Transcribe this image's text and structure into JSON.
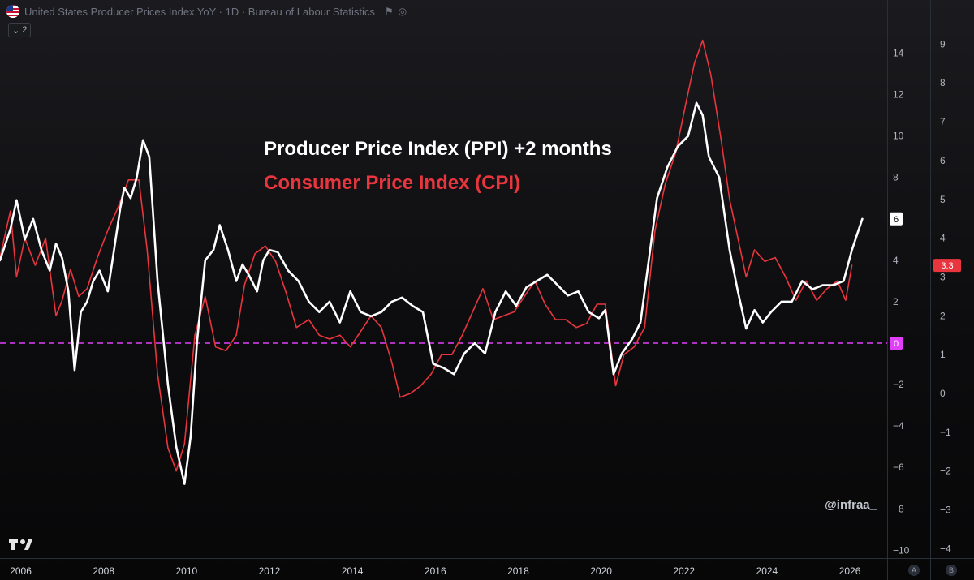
{
  "header": {
    "title": "United States Producer Prices Index YoY · 1D · Bureau of Labour Statistics",
    "flag_icon": "us-flag-icon",
    "collapse_label": "2"
  },
  "colors": {
    "ppi": "#ffffff",
    "cpi": "#e8353e",
    "zero_line": "#e040fb",
    "background": "#0d0d0f"
  },
  "watermark": "@infraa_",
  "scale_buttons": [
    "A",
    "B"
  ],
  "chart_data": {
    "type": "line",
    "title": "",
    "annotations": [
      "Producer Price Index (PPI) +2 months",
      "Consumer Price Index (CPI)"
    ],
    "x_axis": {
      "ticks": [
        "2006",
        "2008",
        "2010",
        "2012",
        "2014",
        "2016",
        "2018",
        "2020",
        "2022",
        "2024",
        "2026"
      ],
      "range": [
        2005.5,
        2026.9
      ]
    },
    "y_axis_ppi": {
      "ticks": [
        14,
        12,
        10,
        8,
        6,
        4,
        2,
        0,
        -2,
        -4,
        -6,
        -8,
        -10
      ],
      "range": [
        -10.3,
        15.0
      ],
      "last_value_label": "6",
      "zero_label": "0"
    },
    "y_axis_cpi": {
      "ticks": [
        9,
        8,
        7,
        6,
        5,
        4,
        3,
        2,
        1,
        0,
        -1,
        -2,
        -3,
        -4
      ],
      "range": [
        -4.2,
        9.3
      ],
      "last_value_label": "3.3"
    },
    "zero_line": 0,
    "legend": "none",
    "grid": false,
    "series": [
      {
        "name": "Producer Price Index (PPI) +2 months",
        "axis": "left",
        "values": [
          [
            2005.5,
            4.0
          ],
          [
            2005.75,
            5.5
          ],
          [
            2005.9,
            6.9
          ],
          [
            2006.1,
            5.0
          ],
          [
            2006.3,
            6.0
          ],
          [
            2006.5,
            4.5
          ],
          [
            2006.7,
            3.5
          ],
          [
            2006.85,
            4.8
          ],
          [
            2007.0,
            4.1
          ],
          [
            2007.15,
            2.5
          ],
          [
            2007.3,
            -1.3
          ],
          [
            2007.45,
            1.5
          ],
          [
            2007.6,
            2.0
          ],
          [
            2007.75,
            3.0
          ],
          [
            2007.9,
            3.5
          ],
          [
            2008.1,
            2.5
          ],
          [
            2008.25,
            4.5
          ],
          [
            2008.4,
            6.5
          ],
          [
            2008.5,
            7.5
          ],
          [
            2008.65,
            7.0
          ],
          [
            2008.8,
            8.0
          ],
          [
            2008.95,
            9.8
          ],
          [
            2009.1,
            9.0
          ],
          [
            2009.3,
            3.0
          ],
          [
            2009.55,
            -2.0
          ],
          [
            2009.75,
            -5.0
          ],
          [
            2009.95,
            -6.8
          ],
          [
            2010.1,
            -4.5
          ],
          [
            2010.25,
            0.0
          ],
          [
            2010.45,
            4.0
          ],
          [
            2010.65,
            4.5
          ],
          [
            2010.8,
            5.7
          ],
          [
            2011.0,
            4.5
          ],
          [
            2011.2,
            3.0
          ],
          [
            2011.35,
            3.8
          ],
          [
            2011.5,
            3.3
          ],
          [
            2011.7,
            2.5
          ],
          [
            2011.85,
            4.0
          ],
          [
            2012.0,
            4.5
          ],
          [
            2012.2,
            4.4
          ],
          [
            2012.45,
            3.5
          ],
          [
            2012.7,
            3.0
          ],
          [
            2012.95,
            2.0
          ],
          [
            2013.2,
            1.5
          ],
          [
            2013.45,
            2.0
          ],
          [
            2013.7,
            1.0
          ],
          [
            2013.95,
            2.5
          ],
          [
            2014.2,
            1.5
          ],
          [
            2014.45,
            1.3
          ],
          [
            2014.7,
            1.5
          ],
          [
            2014.95,
            2.0
          ],
          [
            2015.2,
            2.2
          ],
          [
            2015.45,
            1.8
          ],
          [
            2015.7,
            1.5
          ],
          [
            2015.95,
            -1.0
          ],
          [
            2016.2,
            -1.2
          ],
          [
            2016.45,
            -1.5
          ],
          [
            2016.7,
            -0.5
          ],
          [
            2016.95,
            0.0
          ],
          [
            2017.2,
            -0.5
          ],
          [
            2017.45,
            1.5
          ],
          [
            2017.7,
            2.5
          ],
          [
            2017.95,
            1.8
          ],
          [
            2018.2,
            2.7
          ],
          [
            2018.45,
            3.0
          ],
          [
            2018.7,
            3.3
          ],
          [
            2018.95,
            2.8
          ],
          [
            2019.2,
            2.3
          ],
          [
            2019.45,
            2.5
          ],
          [
            2019.7,
            1.5
          ],
          [
            2019.95,
            1.2
          ],
          [
            2020.1,
            1.6
          ],
          [
            2020.3,
            -1.5
          ],
          [
            2020.5,
            -0.5
          ],
          [
            2020.75,
            0.2
          ],
          [
            2020.95,
            1.0
          ],
          [
            2021.15,
            4.0
          ],
          [
            2021.35,
            7.0
          ],
          [
            2021.6,
            8.5
          ],
          [
            2021.85,
            9.5
          ],
          [
            2022.1,
            10.0
          ],
          [
            2022.3,
            11.6
          ],
          [
            2022.45,
            11.0
          ],
          [
            2022.6,
            9.0
          ],
          [
            2022.85,
            8.0
          ],
          [
            2023.1,
            4.5
          ],
          [
            2023.3,
            2.5
          ],
          [
            2023.5,
            0.7
          ],
          [
            2023.7,
            1.6
          ],
          [
            2023.9,
            1.0
          ],
          [
            2024.1,
            1.5
          ],
          [
            2024.35,
            2.0
          ],
          [
            2024.6,
            2.0
          ],
          [
            2024.85,
            3.0
          ],
          [
            2025.1,
            2.6
          ],
          [
            2025.35,
            2.8
          ],
          [
            2025.6,
            2.8
          ],
          [
            2025.85,
            3.0
          ],
          [
            2026.05,
            4.5
          ],
          [
            2026.3,
            6.0
          ]
        ]
      },
      {
        "name": "Consumer Price Index (CPI)",
        "axis": "right",
        "values": [
          [
            2005.5,
            3.5
          ],
          [
            2005.75,
            4.7
          ],
          [
            2005.9,
            3.0
          ],
          [
            2006.1,
            4.0
          ],
          [
            2006.35,
            3.3
          ],
          [
            2006.6,
            4.0
          ],
          [
            2006.85,
            2.0
          ],
          [
            2007.0,
            2.4
          ],
          [
            2007.2,
            3.2
          ],
          [
            2007.4,
            2.5
          ],
          [
            2007.6,
            2.7
          ],
          [
            2007.85,
            3.5
          ],
          [
            2008.1,
            4.2
          ],
          [
            2008.35,
            4.8
          ],
          [
            2008.6,
            5.5
          ],
          [
            2008.85,
            5.5
          ],
          [
            2009.05,
            3.7
          ],
          [
            2009.3,
            0.5
          ],
          [
            2009.55,
            -1.4
          ],
          [
            2009.75,
            -2.0
          ],
          [
            2009.95,
            -1.3
          ],
          [
            2010.2,
            1.5
          ],
          [
            2010.45,
            2.5
          ],
          [
            2010.7,
            1.2
          ],
          [
            2010.95,
            1.1
          ],
          [
            2011.2,
            1.5
          ],
          [
            2011.4,
            2.8
          ],
          [
            2011.65,
            3.6
          ],
          [
            2011.9,
            3.8
          ],
          [
            2012.15,
            3.4
          ],
          [
            2012.4,
            2.6
          ],
          [
            2012.65,
            1.7
          ],
          [
            2012.95,
            1.9
          ],
          [
            2013.2,
            1.5
          ],
          [
            2013.45,
            1.4
          ],
          [
            2013.7,
            1.5
          ],
          [
            2013.95,
            1.2
          ],
          [
            2014.2,
            1.6
          ],
          [
            2014.45,
            2.0
          ],
          [
            2014.7,
            1.7
          ],
          [
            2014.95,
            0.8
          ],
          [
            2015.15,
            -0.1
          ],
          [
            2015.4,
            0.0
          ],
          [
            2015.65,
            0.2
          ],
          [
            2015.9,
            0.5
          ],
          [
            2016.15,
            1.0
          ],
          [
            2016.4,
            1.0
          ],
          [
            2016.65,
            1.5
          ],
          [
            2016.9,
            2.1
          ],
          [
            2017.15,
            2.7
          ],
          [
            2017.4,
            1.9
          ],
          [
            2017.65,
            2.0
          ],
          [
            2017.9,
            2.1
          ],
          [
            2018.15,
            2.5
          ],
          [
            2018.4,
            2.9
          ],
          [
            2018.65,
            2.3
          ],
          [
            2018.9,
            1.9
          ],
          [
            2019.15,
            1.9
          ],
          [
            2019.4,
            1.7
          ],
          [
            2019.65,
            1.8
          ],
          [
            2019.9,
            2.3
          ],
          [
            2020.1,
            2.3
          ],
          [
            2020.35,
            0.2
          ],
          [
            2020.55,
            1.0
          ],
          [
            2020.8,
            1.2
          ],
          [
            2021.05,
            1.7
          ],
          [
            2021.3,
            4.2
          ],
          [
            2021.55,
            5.4
          ],
          [
            2021.8,
            6.2
          ],
          [
            2022.05,
            7.5
          ],
          [
            2022.25,
            8.5
          ],
          [
            2022.45,
            9.1
          ],
          [
            2022.65,
            8.2
          ],
          [
            2022.9,
            6.5
          ],
          [
            2023.1,
            5.0
          ],
          [
            2023.3,
            4.0
          ],
          [
            2023.5,
            3.0
          ],
          [
            2023.7,
            3.7
          ],
          [
            2023.95,
            3.4
          ],
          [
            2024.2,
            3.5
          ],
          [
            2024.45,
            3.0
          ],
          [
            2024.7,
            2.4
          ],
          [
            2024.95,
            2.9
          ],
          [
            2025.2,
            2.4
          ],
          [
            2025.45,
            2.7
          ],
          [
            2025.7,
            2.9
          ],
          [
            2025.9,
            2.4
          ],
          [
            2026.05,
            3.3
          ]
        ]
      }
    ]
  }
}
